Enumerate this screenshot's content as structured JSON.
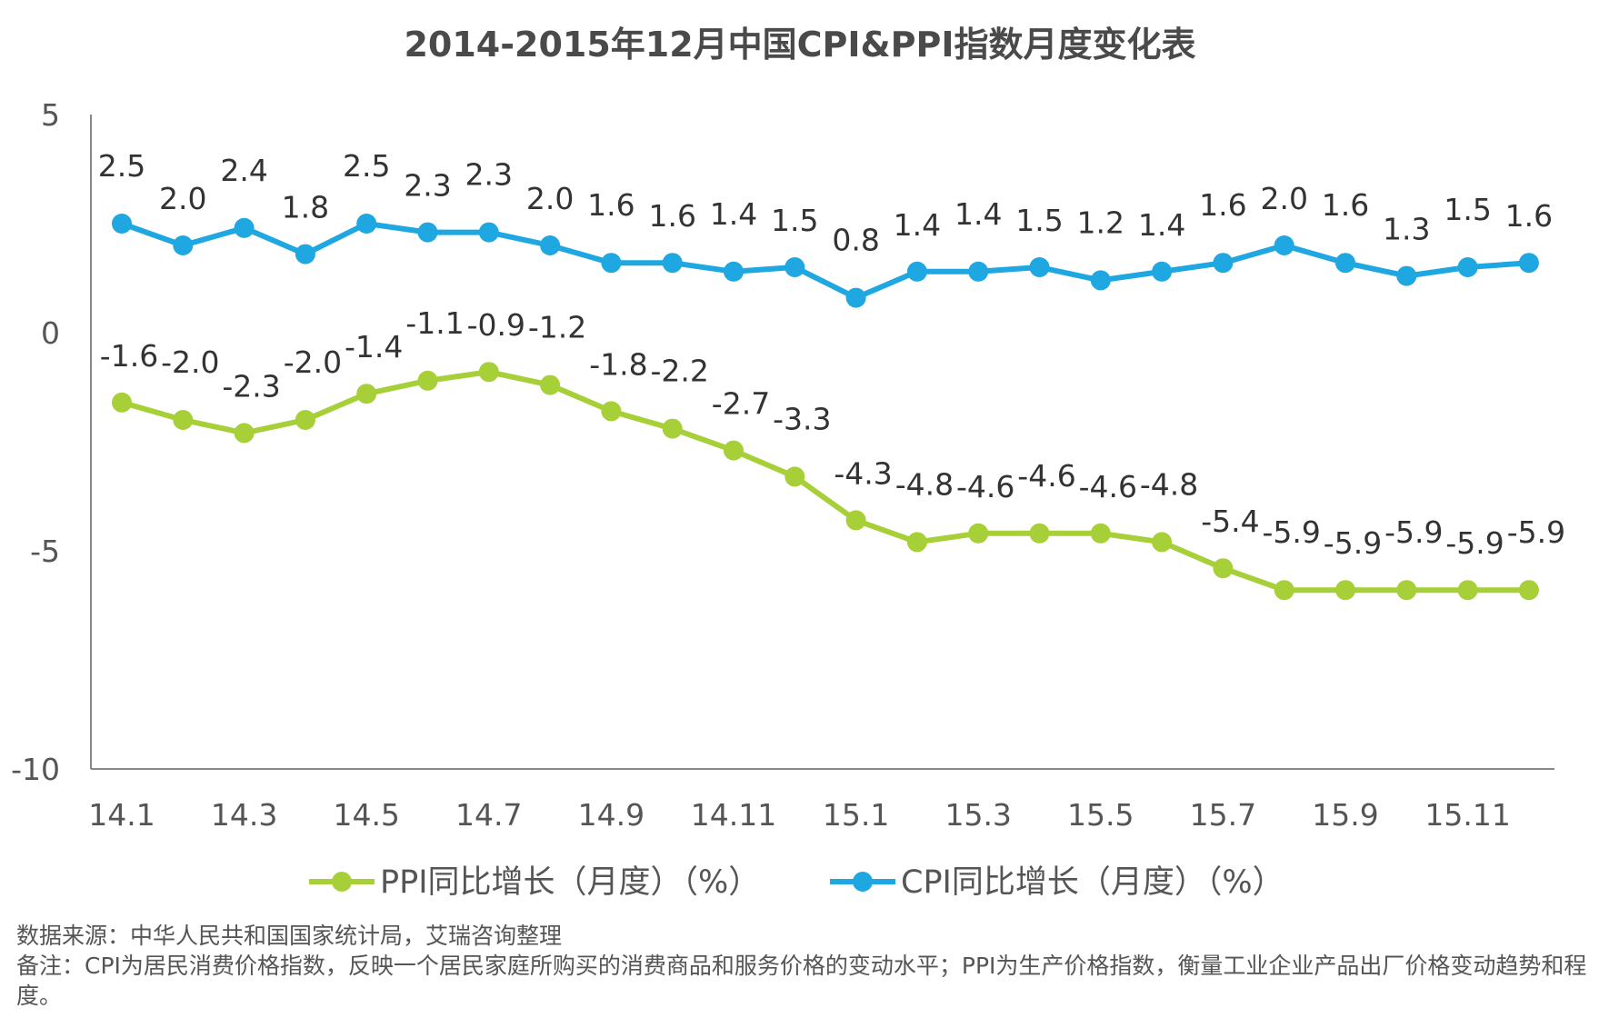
{
  "chart_data": {
    "type": "line",
    "title": "2014-2015年12月中国CPI&PPI指数月度变化表",
    "xlabel": "",
    "ylabel": "",
    "ylim": [
      -10,
      5
    ],
    "yticks": [
      5,
      0,
      -5,
      -10
    ],
    "categories": [
      "14.1",
      "14.2",
      "14.3",
      "14.4",
      "14.5",
      "14.6",
      "14.7",
      "14.8",
      "14.9",
      "14.10",
      "14.11",
      "14.12",
      "15.1",
      "15.2",
      "15.3",
      "15.4",
      "15.5",
      "15.6",
      "15.7",
      "15.8",
      "15.9",
      "15.10",
      "15.11",
      "15.12"
    ],
    "x_tick_labels": [
      "14.1",
      "14.3",
      "14.5",
      "14.7",
      "14.9",
      "14.11",
      "15.1",
      "15.3",
      "15.5",
      "15.7",
      "15.9",
      "15.11"
    ],
    "series": [
      {
        "name": "CPI同比增长（月度）（%）",
        "color": "#1ea7e1",
        "values": [
          2.5,
          2.0,
          2.4,
          1.8,
          2.5,
          2.3,
          2.3,
          2.0,
          1.6,
          1.6,
          1.4,
          1.5,
          0.8,
          1.4,
          1.4,
          1.5,
          1.2,
          1.4,
          1.6,
          2.0,
          1.6,
          1.3,
          1.5,
          1.6
        ],
        "labels": [
          "2.5",
          "2.0",
          "2.4",
          "1.8",
          "2.5",
          "2.3",
          "2.3",
          "2.0",
          "1.6",
          "1.6",
          "1.4",
          "1.5",
          "0.8",
          "1.4",
          "1.4",
          "1.5",
          "1.2",
          "1.4",
          "1.6",
          "2.0",
          "1.6",
          "1.3",
          "1.5",
          "1.6"
        ]
      },
      {
        "name": "PPI同比增长（月度）（%）",
        "color": "#a6cf38",
        "values": [
          -1.6,
          -2.0,
          -2.3,
          -2.0,
          -1.4,
          -1.1,
          -0.9,
          -1.2,
          -1.8,
          -2.2,
          -2.7,
          -3.3,
          -4.3,
          -4.8,
          -4.6,
          -4.6,
          -4.6,
          -4.8,
          -5.4,
          -5.9,
          -5.9,
          -5.9,
          -5.9,
          -5.9
        ],
        "labels": [
          "-1.6",
          "-2.0",
          "-2.3",
          "-2.0",
          "-1.4",
          "-1.1",
          "-0.9",
          "-1.2",
          "-1.8",
          "-2.2",
          "-2.7",
          "-3.3",
          "-4.3",
          "-4.8",
          "-4.6",
          "-4.6",
          "-4.6",
          "-4.8",
          "-5.4",
          "-5.9",
          "-5.9",
          "-5.9",
          "-5.9",
          "-5.9"
        ]
      }
    ],
    "legend": [
      "PPI同比增长（月度）（%）",
      "CPI同比增长（月度）（%）"
    ],
    "legend_position": "bottom",
    "grid": false
  },
  "footer": {
    "source": "数据来源：中华人民共和国国家统计局，艾瑞咨询整理",
    "note": "备注：CPI为居民消费价格指数，反映一个居民家庭所购买的消费商品和服务价格的变动水平；PPI为生产价格指数，衡量工业企业产品出厂价格变动趋势和程度。"
  }
}
